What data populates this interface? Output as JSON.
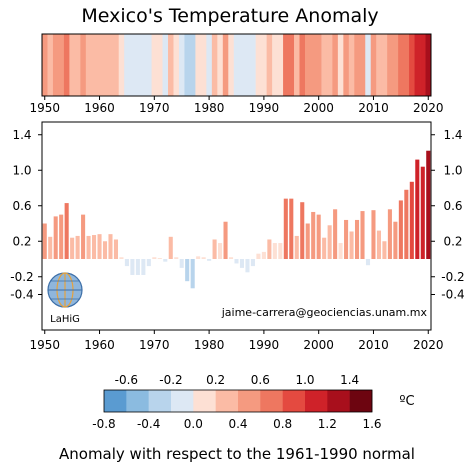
{
  "chart_data": [
    {
      "type": "heatmap",
      "title": "Mexico's Temperature Anomaly",
      "x_ticks": [
        1950,
        1960,
        1970,
        1980,
        1990,
        2000,
        2010,
        2020
      ],
      "x_range": [
        1950,
        2020
      ]
    },
    {
      "type": "bar",
      "x_ticks": [
        1950,
        1960,
        1970,
        1980,
        1990,
        2000,
        2010,
        2020
      ],
      "y_ticks": [
        -0.4,
        -0.2,
        0.2,
        0.6,
        1.0,
        1.4
      ],
      "ylim": [
        -0.5,
        1.6
      ],
      "x": [
        1950,
        1951,
        1952,
        1953,
        1954,
        1955,
        1956,
        1957,
        1958,
        1959,
        1960,
        1961,
        1962,
        1963,
        1964,
        1965,
        1966,
        1967,
        1968,
        1969,
        1970,
        1971,
        1972,
        1973,
        1974,
        1975,
        1976,
        1977,
        1978,
        1979,
        1980,
        1981,
        1982,
        1983,
        1984,
        1985,
        1986,
        1987,
        1988,
        1989,
        1990,
        1991,
        1992,
        1993,
        1994,
        1995,
        1996,
        1997,
        1998,
        1999,
        2000,
        2001,
        2002,
        2003,
        2004,
        2005,
        2006,
        2007,
        2008,
        2009,
        2010,
        2011,
        2012,
        2013,
        2014,
        2015,
        2016,
        2017,
        2018,
        2019,
        2020
      ],
      "values": [
        0.4,
        0.25,
        0.48,
        0.5,
        0.63,
        0.24,
        0.26,
        0.5,
        0.26,
        0.27,
        0.28,
        0.2,
        0.28,
        0.22,
        0.02,
        -0.08,
        -0.18,
        -0.18,
        -0.18,
        -0.08,
        0.02,
        0.01,
        -0.03,
        0.25,
        0.02,
        -0.1,
        -0.25,
        -0.33,
        0.03,
        0.02,
        -0.02,
        0.22,
        0.18,
        0.42,
        0.02,
        -0.05,
        -0.1,
        -0.15,
        -0.08,
        0.06,
        0.08,
        0.22,
        0.18,
        0.18,
        0.68,
        0.68,
        0.26,
        0.64,
        0.4,
        0.53,
        0.5,
        0.24,
        0.38,
        0.56,
        0.18,
        0.44,
        0.31,
        0.44,
        0.54,
        -0.07,
        0.55,
        0.32,
        0.2,
        0.56,
        0.42,
        0.66,
        0.78,
        0.87,
        1.12,
        1.04,
        1.22
      ],
      "title": "",
      "xlabel": "",
      "ylabel": "",
      "grid": false
    }
  ],
  "colorbar": {
    "top_ticks": [
      "-0.6",
      "-0.2",
      "0.2",
      "0.6",
      "1.0",
      "1.4"
    ],
    "bottom_ticks": [
      "-0.8",
      "-0.4",
      "0.0",
      "0.4",
      "0.8",
      "1.2",
      "1.6"
    ],
    "unit": "ºC",
    "range": [
      -0.8,
      1.6
    ],
    "colors": [
      "#5a9bd1",
      "#8bbbe0",
      "#b8d4ec",
      "#dde8f4",
      "#fde0d4",
      "#fbbba5",
      "#f59a80",
      "#ee7760",
      "#e44a40",
      "#cf2229",
      "#a80f1c",
      "#6d0510"
    ]
  },
  "logo_text": "LaHiG",
  "credit": "jaime-carrera@geociencias.unam.mx",
  "caption": "Anomaly with respect to the 1961-1990 normal",
  "colors": {
    "negative": [
      "#dde8f4",
      "#b8d4ec",
      "#8bbbe0",
      "#5a9bd1"
    ],
    "positive": [
      "#fde0d4",
      "#fbbba5",
      "#f59a80",
      "#ee7760",
      "#e44a40",
      "#cf2229",
      "#a80f1c",
      "#6d0510"
    ]
  }
}
